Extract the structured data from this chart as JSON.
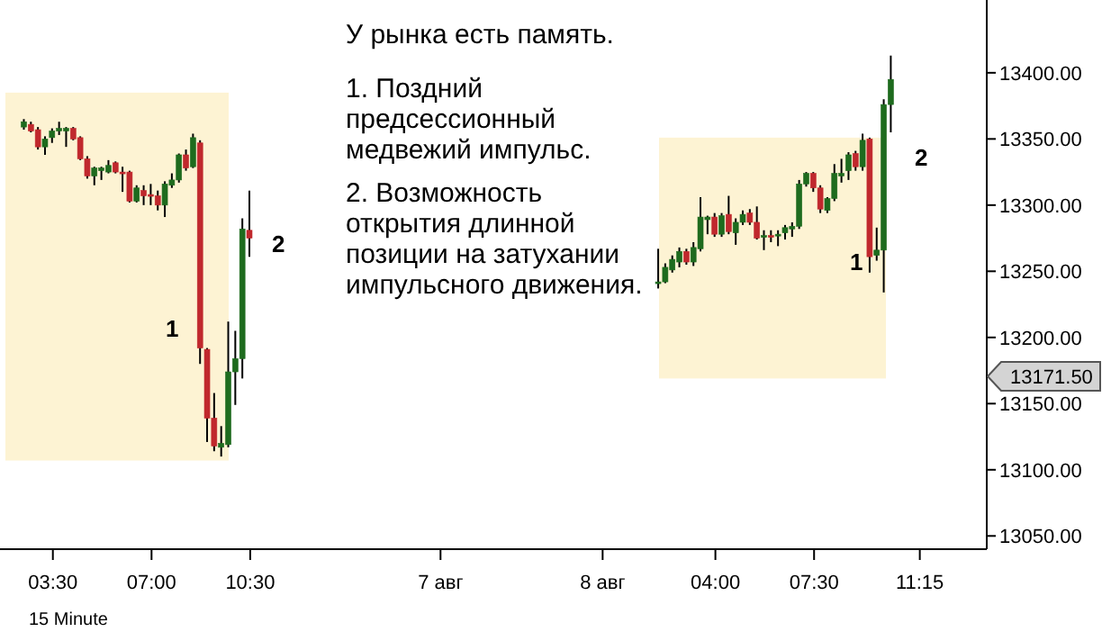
{
  "chart_data": {
    "type": "candlestick",
    "categories": [
      null,
      null,
      null,
      null,
      null,
      null,
      null,
      "03:30",
      null,
      null,
      null,
      null,
      null,
      null,
      null,
      null,
      null,
      null,
      null,
      null,
      null,
      "07:00",
      null,
      null,
      null,
      null,
      null,
      null,
      null,
      null,
      null,
      null,
      null,
      null,
      null,
      "10:30",
      null,
      null,
      null,
      null,
      null,
      null,
      null,
      null,
      null,
      null,
      null,
      null,
      null,
      null,
      null,
      null,
      null,
      null,
      null,
      null,
      null,
      null,
      null,
      null,
      null,
      null,
      "7 авг",
      null,
      null,
      null,
      null,
      null,
      null,
      null,
      null,
      null,
      null,
      null,
      null,
      null,
      null,
      null,
      null,
      null,
      null,
      null,
      null,
      null,
      null,
      "8 авг",
      null,
      null,
      null,
      null,
      null,
      null,
      null,
      null,
      null,
      null,
      null,
      null,
      null,
      null,
      null,
      "04:00",
      null,
      null,
      null,
      null,
      null,
      null,
      null,
      null,
      null,
      null,
      null,
      null,
      null,
      "07:30",
      null,
      null,
      null,
      null,
      null,
      null,
      null,
      null,
      null,
      null,
      null,
      null,
      null,
      null,
      "11:15",
      null,
      null,
      null,
      null,
      null,
      null,
      null,
      null,
      null
    ],
    "ohlc": [
      null,
      null,
      null,
      [
        13359,
        13365,
        13357,
        13363
      ],
      [
        13361,
        13363,
        13355,
        13356
      ],
      [
        13357,
        13359,
        13342,
        13344
      ],
      [
        13344,
        13352,
        13338,
        13350
      ],
      [
        13351,
        13358,
        13347,
        13356
      ],
      [
        13356,
        13363,
        13353,
        13358
      ],
      [
        13356,
        13359,
        13344,
        13358
      ],
      [
        13358,
        13359,
        13349,
        13350
      ],
      [
        13351,
        13352,
        13334,
        13335
      ],
      [
        13335,
        13337,
        13320,
        13322
      ],
      [
        13322,
        13329,
        13315,
        13328
      ],
      [
        13326,
        13329,
        13319,
        13328
      ],
      [
        13325,
        13334,
        13324,
        13330
      ],
      [
        13332,
        13333,
        13324,
        13325
      ],
      [
        13325,
        13329,
        13310,
        13324
      ],
      [
        13325,
        13326,
        13302,
        13303
      ],
      [
        13303,
        13315,
        13302,
        13313
      ],
      [
        13311,
        13315,
        13300,
        13307
      ],
      [
        13308,
        13316,
        13300,
        13307
      ],
      [
        13307,
        13311,
        13296,
        13300
      ],
      [
        13300,
        13318,
        13291,
        13316
      ],
      [
        13315,
        13324,
        13313,
        13319
      ],
      [
        13319,
        13339,
        13317,
        13338
      ],
      [
        13338,
        13342,
        13326,
        13328
      ],
      [
        13329,
        13354,
        13328,
        13351
      ],
      [
        13347,
        13349,
        13180,
        13192
      ],
      [
        13191,
        13192,
        13121,
        13139
      ],
      [
        13139,
        13158,
        13114,
        13118
      ],
      [
        13117,
        13133,
        13110,
        13120
      ],
      [
        13119,
        13212,
        13117,
        13174
      ],
      [
        13174,
        13205,
        13149,
        13184
      ],
      [
        13184,
        13290,
        13169,
        13282
      ],
      [
        13281,
        13311,
        13261,
        13275
      ],
      null,
      null,
      null,
      null,
      null,
      null,
      null,
      null,
      null,
      null,
      null,
      null,
      null,
      null,
      null,
      null,
      null,
      null,
      null,
      null,
      null,
      null,
      null,
      null,
      null,
      null,
      null,
      null,
      null,
      null,
      null,
      null,
      null,
      null,
      null,
      null,
      null,
      null,
      null,
      null,
      null,
      null,
      null,
      null,
      null,
      null,
      null,
      null,
      null,
      null,
      null,
      null,
      null,
      null,
      null,
      null,
      null,
      [
        13241,
        13267,
        13237,
        13242
      ],
      [
        13242,
        13256,
        13241,
        13253
      ],
      [
        13251,
        13262,
        13249,
        13259
      ],
      [
        13257,
        13268,
        13253,
        13265
      ],
      [
        13265,
        13267,
        13255,
        13257
      ],
      [
        13257,
        13272,
        13254,
        13268
      ],
      [
        13267,
        13306,
        13265,
        13291
      ],
      [
        13289,
        13292,
        13278,
        13291
      ],
      [
        13291,
        13294,
        13276,
        13278
      ],
      [
        13278,
        13294,
        13276,
        13292
      ],
      [
        13293,
        13307,
        13278,
        13280
      ],
      [
        13279,
        13290,
        13270,
        13287
      ],
      [
        13287,
        13296,
        13285,
        13293
      ],
      [
        13294,
        13297,
        13285,
        13287
      ],
      [
        13287,
        13299,
        13274,
        13275
      ],
      [
        13276,
        13281,
        13266,
        13277
      ],
      [
        13277,
        13281,
        13272,
        13276
      ],
      [
        13277,
        13281,
        13269,
        13278
      ],
      [
        13279,
        13285,
        13274,
        13283
      ],
      [
        13282,
        13287,
        13276,
        13284
      ],
      [
        13284,
        13319,
        13282,
        13316
      ],
      [
        13316,
        13325,
        13314,
        13324
      ],
      [
        13324,
        13325,
        13310,
        13313
      ],
      [
        13313,
        13315,
        13294,
        13297
      ],
      [
        13296,
        13306,
        13294,
        13305
      ],
      [
        13305,
        13331,
        13303,
        13324
      ],
      [
        13322,
        13335,
        13317,
        13324
      ],
      [
        13326,
        13340,
        13319,
        13338
      ],
      [
        13339,
        13341,
        13326,
        13329
      ],
      [
        13329,
        13354,
        13326,
        13349
      ],
      [
        13350,
        13351,
        13249,
        13261
      ],
      [
        13262,
        13283,
        13258,
        13266
      ],
      [
        13266,
        13380,
        13234,
        13376
      ],
      [
        13376,
        13413,
        13355,
        13395
      ],
      null,
      null,
      null,
      null,
      null,
      null,
      null,
      null,
      null,
      null,
      null,
      null,
      null
    ],
    "colors": [
      null,
      null,
      null,
      "#1e6b1e",
      "#c0282d",
      "#c0282d",
      "#1e6b1e",
      "#1e6b1e",
      "#1e6b1e",
      "#1e6b1e",
      "#c0282d",
      "#c0282d",
      "#c0282d",
      "#1e6b1e",
      "#1e6b1e",
      "#1e6b1e",
      "#c0282d",
      "#c0282d",
      "#c0282d",
      "#1e6b1e",
      "#c0282d",
      "#c0282d",
      "#c0282d",
      "#1e6b1e",
      "#1e6b1e",
      "#1e6b1e",
      "#c0282d",
      "#1e6b1e",
      "#c0282d",
      "#c0282d",
      "#c0282d",
      "#1e6b1e",
      "#1e6b1e",
      "#1e6b1e",
      "#1e6b1e",
      "#c0282d",
      null,
      null,
      null,
      null,
      null,
      null,
      null,
      null,
      null,
      null,
      null,
      null,
      null,
      null,
      null,
      null,
      null,
      null,
      null,
      null,
      null,
      null,
      null,
      null,
      null,
      null,
      null,
      null,
      null,
      null,
      null,
      null,
      null,
      null,
      null,
      null,
      null,
      null,
      null,
      null,
      null,
      null,
      null,
      null,
      null,
      null,
      null,
      null,
      null,
      null,
      null,
      null,
      null,
      null,
      null,
      null,
      null,
      "#1e6b1e",
      "#1e6b1e",
      "#1e6b1e",
      "#1e6b1e",
      "#c0282d",
      "#1e6b1e",
      "#1e6b1e",
      "#1e6b1e",
      "#c0282d",
      "#1e6b1e",
      "#c0282d",
      "#1e6b1e",
      "#1e6b1e",
      "#c0282d",
      "#c0282d",
      "#1e6b1e",
      "#c0282d",
      "#1e6b1e",
      "#1e6b1e",
      "#1e6b1e",
      "#1e6b1e",
      "#1e6b1e",
      "#c0282d",
      "#c0282d",
      "#1e6b1e",
      "#1e6b1e",
      "#1e6b1e",
      "#1e6b1e",
      "#c0282d",
      "#1e6b1e",
      "#c0282d",
      "#1e6b1e",
      "#1e6b1e",
      "#1e6b1e",
      null,
      null,
      null,
      null,
      null,
      null,
      null,
      null,
      null,
      null,
      null,
      null,
      null
    ],
    "ylim": [
      13040,
      13455
    ],
    "yticks": [
      {
        "value": 13050,
        "label": "13050.00"
      },
      {
        "value": 13100,
        "label": "13100.00"
      },
      {
        "value": 13150,
        "label": "13150.00"
      },
      {
        "value": 13200,
        "label": "13200.00"
      },
      {
        "value": 13250,
        "label": "13250.00"
      },
      {
        "value": 13300,
        "label": "13300.00"
      },
      {
        "value": 13350,
        "label": "13350.00"
      },
      {
        "value": 13400,
        "label": "13400.00"
      }
    ],
    "bands": [
      {
        "axis": "y",
        "from": 13107,
        "to": 13385,
        "color": "#fdf3d3"
      },
      {
        "axis": "y",
        "from": 13169,
        "to": 13351,
        "color": "#fdf3d3"
      }
    ],
    "annotations": [
      "У рынка есть память.",
      "1. Поздний предсессионный медвежий импульс.",
      "2. Возможность открытия длинной позиции на затухании импульсного движения.",
      "1",
      "2",
      "1",
      "2",
      "15 Minute",
      "13171.50"
    ],
    "grid": false,
    "legend": false
  }
}
